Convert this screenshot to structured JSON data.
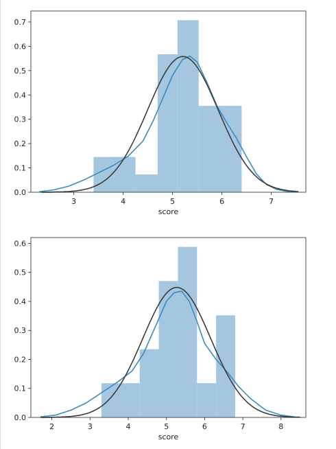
{
  "colors": {
    "bar_fill": "#a4c6de",
    "kde_line": "#3a8bbf",
    "fit_line": "#3b3b3b",
    "axis": "#222222",
    "background": "#ffffff"
  },
  "chart_data": [
    {
      "type": "bar",
      "title": "",
      "xlabel": "score",
      "ylabel": "",
      "xlim": [
        2.13,
        7.7
      ],
      "ylim": [
        0,
        0.745
      ],
      "xticks": [
        3,
        4,
        5,
        6,
        7
      ],
      "yticks": [
        0.0,
        0.1,
        0.2,
        0.3,
        0.4,
        0.5,
        0.6,
        0.7
      ],
      "xtick_labels": [
        "3",
        "4",
        "5",
        "6",
        "7"
      ],
      "ytick_labels": [
        "0.0",
        "0.1",
        "0.2",
        "0.3",
        "0.4",
        "0.5",
        "0.6",
        "0.7"
      ],
      "grid": false,
      "histogram": [
        {
          "x0": 3.4,
          "x1": 4.25,
          "value": 0.145
        },
        {
          "x0": 4.25,
          "x1": 4.7,
          "value": 0.073
        },
        {
          "x0": 4.7,
          "x1": 5.1,
          "value": 0.567
        },
        {
          "x0": 5.1,
          "x1": 5.53,
          "value": 0.707
        },
        {
          "x0": 5.53,
          "x1": 6.4,
          "value": 0.355
        }
      ],
      "kde": {
        "x": [
          2.3,
          2.6,
          2.9,
          3.2,
          3.5,
          3.8,
          4.1,
          4.4,
          4.6,
          4.8,
          5.0,
          5.2,
          5.35,
          5.5,
          5.7,
          5.9,
          6.1,
          6.3,
          6.5,
          6.7,
          6.9,
          7.1,
          7.3,
          7.47
        ],
        "y": [
          0.002,
          0.01,
          0.025,
          0.05,
          0.08,
          0.11,
          0.148,
          0.21,
          0.29,
          0.385,
          0.48,
          0.545,
          0.56,
          0.535,
          0.45,
          0.355,
          0.285,
          0.22,
          0.145,
          0.075,
          0.032,
          0.012,
          0.004,
          0.001
        ]
      },
      "normal_fit": {
        "mean": 5.21,
        "sd": 0.715
      }
    },
    {
      "type": "bar",
      "title": "",
      "xlabel": "score",
      "ylabel": "",
      "xlim": [
        1.45,
        8.65
      ],
      "ylim": [
        0,
        0.62
      ],
      "xticks": [
        2,
        3,
        4,
        5,
        6,
        7,
        8
      ],
      "yticks": [
        0.0,
        0.1,
        0.2,
        0.3,
        0.4,
        0.5,
        0.6
      ],
      "xtick_labels": [
        "2",
        "3",
        "4",
        "5",
        "6",
        "7",
        "8"
      ],
      "ytick_labels": [
        "0.0",
        "0.1",
        "0.2",
        "0.3",
        "0.4",
        "0.5",
        "0.6"
      ],
      "grid": false,
      "histogram": [
        {
          "x0": 3.3,
          "x1": 4.3,
          "value": 0.118
        },
        {
          "x0": 4.3,
          "x1": 4.8,
          "value": 0.235
        },
        {
          "x0": 4.8,
          "x1": 5.3,
          "value": 0.47
        },
        {
          "x0": 5.3,
          "x1": 5.8,
          "value": 0.588
        },
        {
          "x0": 5.8,
          "x1": 6.3,
          "value": 0.118
        },
        {
          "x0": 6.3,
          "x1": 6.8,
          "value": 0.352
        }
      ],
      "kde": {
        "x": [
          1.7,
          2.1,
          2.5,
          2.9,
          3.3,
          3.7,
          4.1,
          4.4,
          4.7,
          5.0,
          5.2,
          5.4,
          5.6,
          5.8,
          6.0,
          6.3,
          6.6,
          6.9,
          7.2,
          7.6,
          8.0,
          8.35
        ],
        "y": [
          0.002,
          0.008,
          0.025,
          0.05,
          0.085,
          0.12,
          0.16,
          0.22,
          0.31,
          0.4,
          0.43,
          0.435,
          0.4,
          0.33,
          0.255,
          0.2,
          0.155,
          0.105,
          0.065,
          0.025,
          0.008,
          0.002
        ]
      },
      "normal_fit": {
        "mean": 5.27,
        "sd": 0.89
      }
    }
  ]
}
